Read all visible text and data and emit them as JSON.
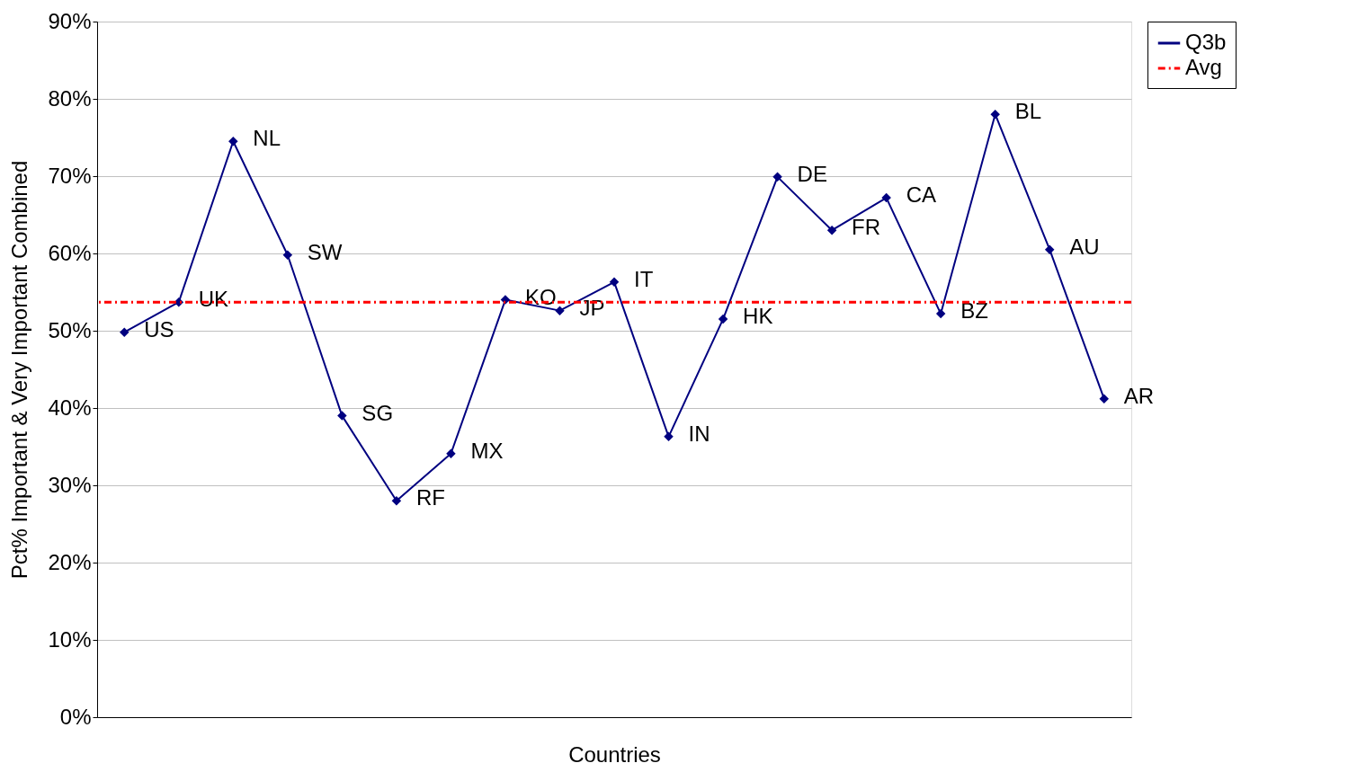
{
  "chart_data": {
    "type": "line",
    "xlabel": "Countries",
    "ylabel": "Pct% Important & Very Important Combined",
    "categories": [
      null,
      null,
      null,
      null,
      null,
      null,
      null,
      null,
      null,
      null,
      null,
      null,
      null,
      null,
      null,
      null,
      null,
      null,
      null
    ],
    "series": [
      {
        "name": "Q3b",
        "color": "#000080",
        "values": [
          49.8,
          53.7,
          74.5,
          59.8,
          39.0,
          28.0,
          34.1,
          54.0,
          52.6,
          56.3,
          36.3,
          51.5,
          69.9,
          63.0,
          67.2,
          52.2,
          78.0,
          60.5,
          41.2
        ],
        "value_labels": [
          "US",
          "UK",
          "NL",
          "SW",
          "SG",
          "RF",
          "MX",
          "KO",
          "JP",
          "IT",
          "IN",
          "HK",
          "DE",
          "FR",
          "CA",
          "BZ",
          "BL",
          "AU",
          "AR"
        ]
      }
    ],
    "ref_lines": [
      {
        "axis": "y",
        "value": 53.7,
        "label": "Avg",
        "color": "#ff0000",
        "line_style": "dashed"
      }
    ],
    "ylim": [
      0,
      90
    ],
    "yticks": [
      {
        "value": 0,
        "label": "0%"
      },
      {
        "value": 10,
        "label": "10%"
      },
      {
        "value": 20,
        "label": "20%"
      },
      {
        "value": 30,
        "label": "30%"
      },
      {
        "value": 40,
        "label": "40%"
      },
      {
        "value": 50,
        "label": "50%"
      },
      {
        "value": 60,
        "label": "60%"
      },
      {
        "value": 70,
        "label": "70%"
      },
      {
        "value": 80,
        "label": "80%"
      },
      {
        "value": 90,
        "label": "90%"
      }
    ],
    "grid": "y",
    "legend": "right",
    "marker": "diamond",
    "line_style": "solid",
    "tick_labels": "y"
  }
}
